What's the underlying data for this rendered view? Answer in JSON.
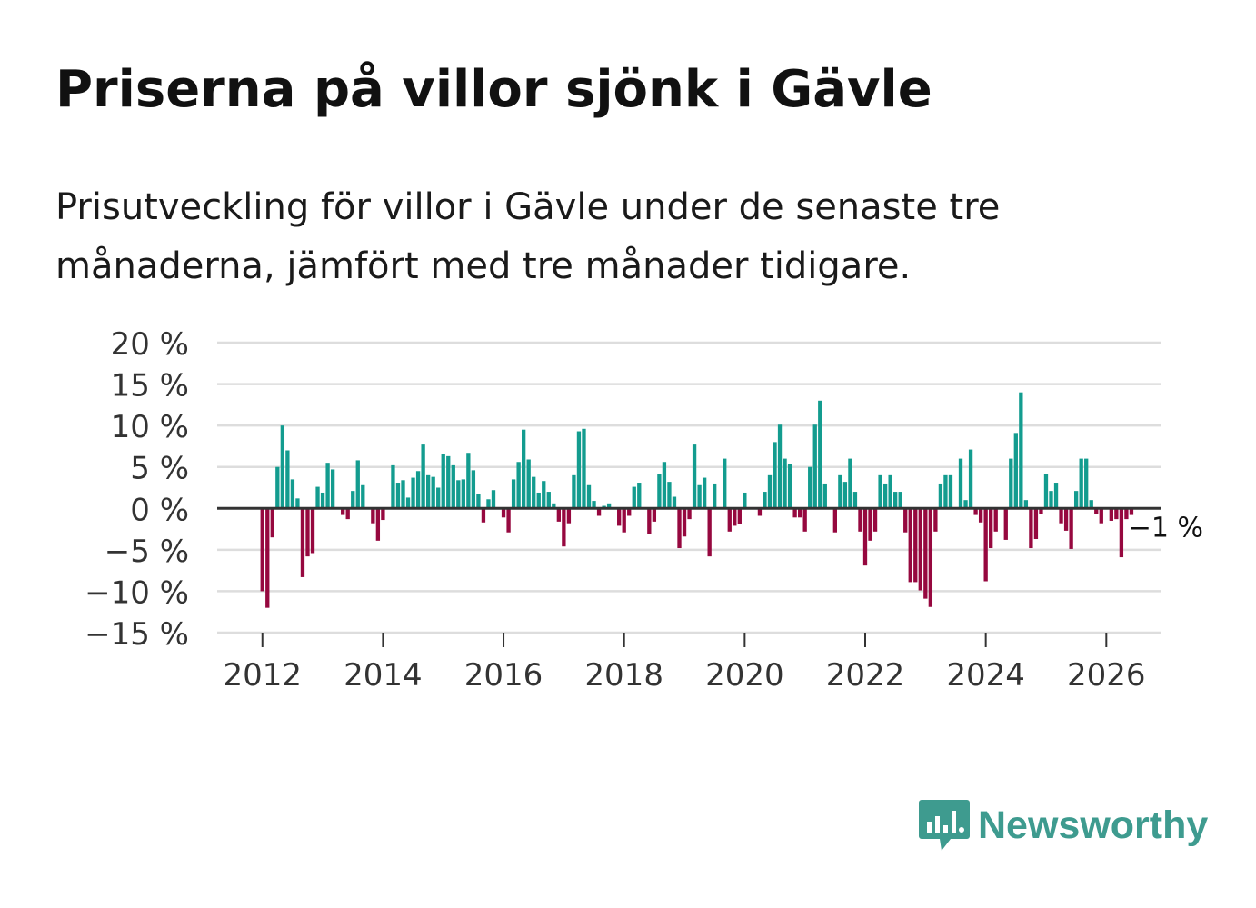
{
  "title": "Priserna på villor sjönk i Gävle",
  "subtitle": "Prisutveckling för villor i Gävle under de senaste tre månaderna, jämfört med tre månader tidigare.",
  "brand": {
    "name": "Newsworthy",
    "color": "#3e9b8f",
    "icon": "bar-chart-speech-bubble-icon"
  },
  "colors": {
    "positive": "#139c8f",
    "negative": "#96083f",
    "grid": "#dddddd",
    "zero": "#333333",
    "axis_text": "#333333"
  },
  "chart_data": {
    "type": "bar",
    "title": "Priserna på villor sjönk i Gävle",
    "xlabel": "",
    "ylabel": "",
    "ylim": [
      -15,
      20
    ],
    "xlim": [
      2011.25,
      2026.9
    ],
    "yticks": [
      20,
      15,
      10,
      5,
      0,
      -5,
      -10,
      -15
    ],
    "ytick_labels": [
      "20 %",
      "15 %",
      "10 %",
      "5 %",
      "0 %",
      "−5 %",
      "−10 %",
      "−15 %"
    ],
    "xticks": [
      2012,
      2014,
      2016,
      2018,
      2020,
      2022,
      2024,
      2026
    ],
    "xtick_labels": [
      "2012",
      "2014",
      "2016",
      "2018",
      "2020",
      "2022",
      "2024",
      "2026"
    ],
    "grid": true,
    "start_year": 2012,
    "start_month": 1,
    "values": [
      -10,
      -12,
      -3.5,
      5,
      10,
      7,
      3.5,
      1.2,
      -8.3,
      -5.8,
      -5.4,
      2.6,
      1.9,
      5.5,
      4.7,
      0,
      -0.8,
      -1.3,
      2.1,
      5.8,
      2.8,
      0,
      -1.8,
      -3.9,
      -1.4,
      0,
      5.2,
      3.1,
      3.4,
      1.3,
      3.7,
      4.5,
      7.7,
      4,
      3.8,
      2.5,
      6.6,
      6.3,
      5.2,
      3.4,
      3.5,
      6.7,
      4.6,
      1.7,
      -1.7,
      1.1,
      2.2,
      0,
      -1.1,
      -2.9,
      3.5,
      5.6,
      9.5,
      5.9,
      3.8,
      1.9,
      3.3,
      2,
      0.6,
      -1.6,
      -4.6,
      -1.8,
      4,
      9.3,
      9.6,
      2.8,
      0.9,
      -0.9,
      0.3,
      0.6,
      0,
      -2.1,
      -2.9,
      -0.9,
      2.6,
      3.1,
      0.1,
      -3.1,
      -1.6,
      4.2,
      5.6,
      3.2,
      1.4,
      -4.8,
      -3.4,
      -1.3,
      7.7,
      2.8,
      3.7,
      -5.8,
      3,
      0,
      6,
      -2.8,
      -2.1,
      -1.9,
      1.9,
      0,
      0,
      -0.9,
      2,
      4,
      8,
      10.1,
      6,
      5.3,
      -1.1,
      -1.1,
      -2.8,
      5,
      10.1,
      13,
      3,
      0,
      -2.9,
      4,
      3.2,
      6,
      2,
      -2.8,
      -6.9,
      -3.9,
      -2.8,
      4,
      3,
      4,
      2,
      2,
      -2.9,
      -8.9,
      -8.9,
      -9.9,
      -10.9,
      -11.9,
      -2.8,
      3,
      4,
      4,
      0,
      6,
      1,
      7.1,
      -0.8,
      -1.7,
      -8.8,
      -4.8,
      -2.8,
      0,
      -3.8,
      6,
      9.1,
      14,
      1,
      -4.8,
      -3.7,
      -0.7,
      4.1,
      2.1,
      3.1,
      -1.8,
      -2.7,
      -4.9,
      2.1,
      6,
      6,
      1,
      -0.7,
      -1.8,
      0,
      -1.5,
      -1.3,
      -5.9,
      -1.3,
      -0.8
    ],
    "annotation": {
      "text": "−1 %",
      "value": -1
    }
  }
}
